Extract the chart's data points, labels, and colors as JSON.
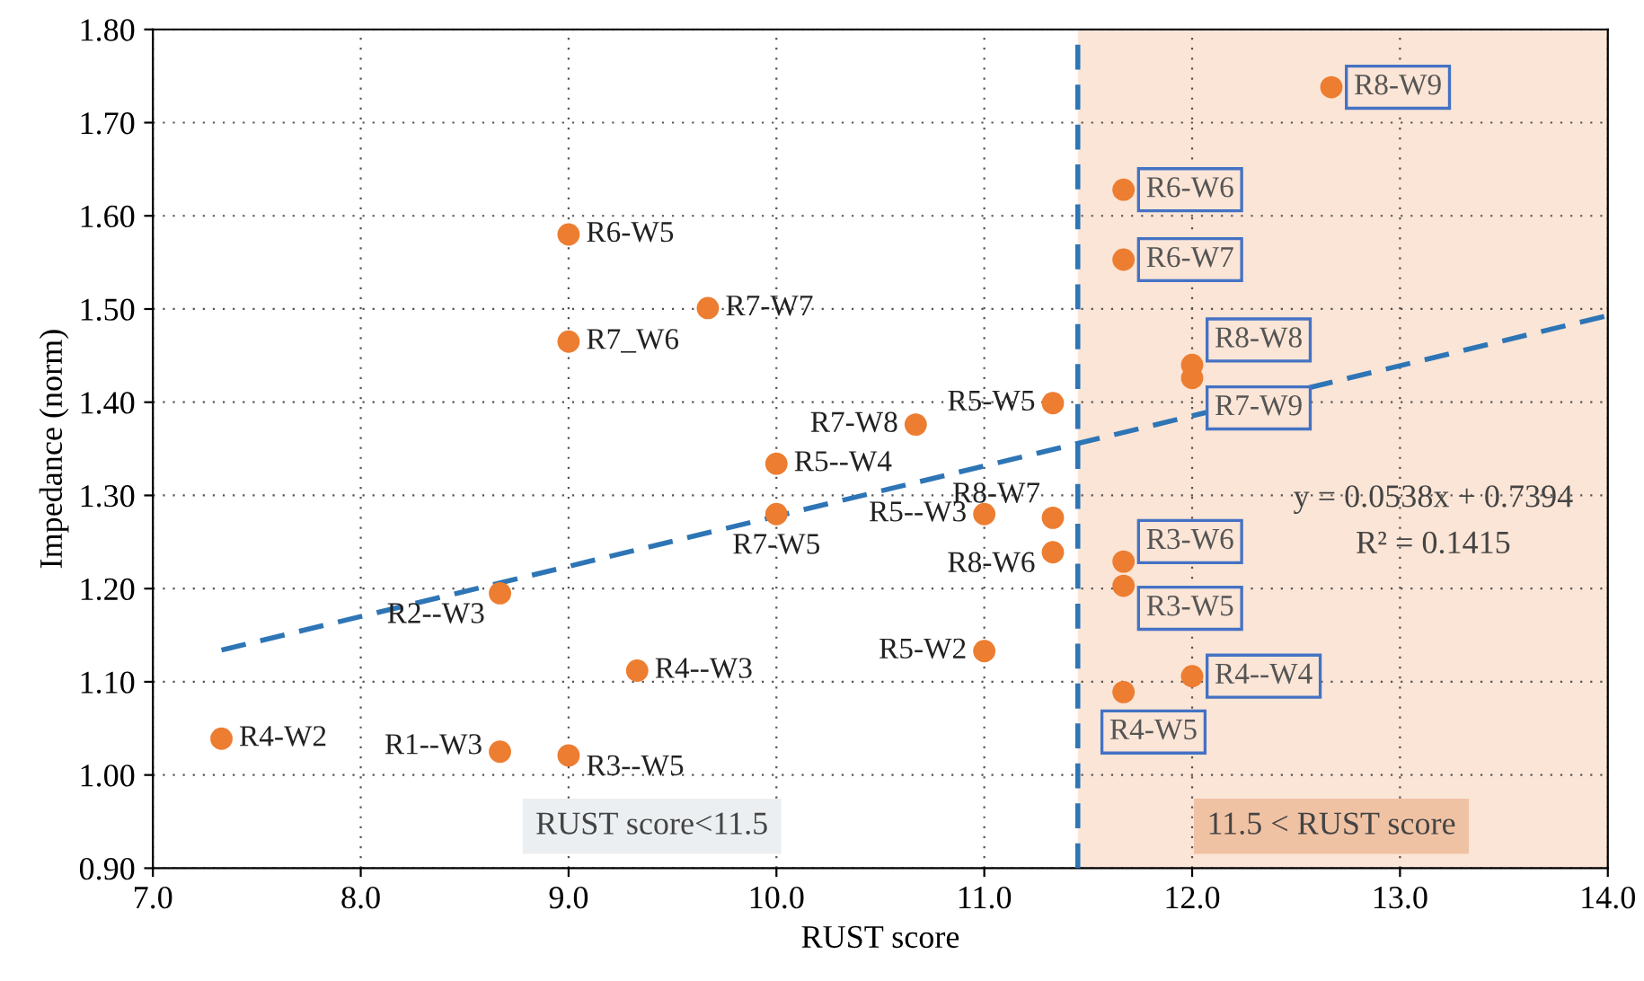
{
  "chart_data": {
    "type": "scatter",
    "xlabel": "RUST score",
    "ylabel": "Impedance (norm)",
    "xlim": [
      7.0,
      14.0
    ],
    "ylim": [
      0.9,
      1.8
    ],
    "xticks": [
      {
        "value": 7,
        "label": "7.0"
      },
      {
        "value": 8,
        "label": "8.0"
      },
      {
        "value": 9,
        "label": "9.0"
      },
      {
        "value": 10,
        "label": "10.0"
      },
      {
        "value": 11,
        "label": "11.0"
      },
      {
        "value": 12,
        "label": "12.0"
      },
      {
        "value": 13,
        "label": "13.0"
      },
      {
        "value": 14,
        "label": "14.0"
      }
    ],
    "yticks": [
      {
        "value": 0.9,
        "label": "0.90"
      },
      {
        "value": 1.0,
        "label": "1.00"
      },
      {
        "value": 1.1,
        "label": "1.10"
      },
      {
        "value": 1.2,
        "label": "1.20"
      },
      {
        "value": 1.3,
        "label": "1.30"
      },
      {
        "value": 1.4,
        "label": "1.40"
      },
      {
        "value": 1.5,
        "label": "1.50"
      },
      {
        "value": 1.6,
        "label": "1.60"
      },
      {
        "value": 1.7,
        "label": "1.70"
      },
      {
        "value": 1.8,
        "label": "1.80"
      }
    ],
    "grid": true,
    "series": [
      {
        "color": "#ed7d31",
        "marker": "circle",
        "x": [
          7.33,
          8.67,
          9.0,
          8.67,
          9.33,
          9.0,
          9.0,
          9.67,
          10.0,
          10.0,
          10.67,
          11.33,
          11.0,
          11.33,
          11.33,
          11.0,
          12.67,
          11.67,
          11.67,
          12.0,
          12.0,
          11.67,
          11.67,
          12.0,
          11.67
        ],
        "values": [
          1.039,
          1.025,
          1.021,
          1.195,
          1.112,
          1.58,
          1.465,
          1.501,
          1.334,
          1.28,
          1.376,
          1.399,
          1.28,
          1.276,
          1.239,
          1.133,
          1.738,
          1.628,
          1.553,
          1.44,
          1.426,
          1.229,
          1.203,
          1.106,
          1.089
        ]
      },
      {
        "type": "line",
        "color": "#2e75b6",
        "line_style": "dashed",
        "x": [
          7.33,
          14.0
        ],
        "values": [
          1.134,
          1.493
        ]
      }
    ],
    "ref_lines": [
      {
        "axis": "x",
        "value": 11.45,
        "color": "#2e75b6",
        "line_style": "dashed"
      }
    ],
    "bands": [
      {
        "axis": "x",
        "from": 11.45,
        "to": 14.0,
        "color": "#fbe5d6"
      }
    ],
    "annotations": [
      {
        "text": "R4-W2",
        "x": 7.33,
        "y": 1.039
      },
      {
        "text": "R1--W3",
        "x": 8.67,
        "y": 1.025
      },
      {
        "text": "R3--W5",
        "x": 9.0,
        "y": 1.021
      },
      {
        "text": "R2--W3",
        "x": 8.67,
        "y": 1.195
      },
      {
        "text": "R4--W3",
        "x": 9.33,
        "y": 1.112
      },
      {
        "text": "R6-W5",
        "x": 9.0,
        "y": 1.58
      },
      {
        "text": "R7_W6",
        "x": 9.0,
        "y": 1.465
      },
      {
        "text": "R7-W7",
        "x": 9.67,
        "y": 1.501
      },
      {
        "text": "R5--W4",
        "x": 10.0,
        "y": 1.334
      },
      {
        "text": "R7-W5",
        "x": 10.0,
        "y": 1.28
      },
      {
        "text": "R7-W8",
        "x": 10.67,
        "y": 1.376
      },
      {
        "text": "R5-W5",
        "x": 11.33,
        "y": 1.399
      },
      {
        "text": "R5--W3",
        "x": 11.0,
        "y": 1.28
      },
      {
        "text": "R8-W7",
        "x": 11.33,
        "y": 1.276
      },
      {
        "text": "R8-W6",
        "x": 11.33,
        "y": 1.239
      },
      {
        "text": "R5-W2",
        "x": 11.0,
        "y": 1.133
      },
      {
        "text": "R8-W9",
        "x": 12.67,
        "y": 1.738
      },
      {
        "text": "R6-W6",
        "x": 11.67,
        "y": 1.628
      },
      {
        "text": "R6-W7",
        "x": 11.67,
        "y": 1.553
      },
      {
        "text": "R8-W8",
        "x": 12.0,
        "y": 1.44
      },
      {
        "text": "R7-W9",
        "x": 12.0,
        "y": 1.426
      },
      {
        "text": "R3-W6",
        "x": 11.67,
        "y": 1.229
      },
      {
        "text": "R3-W5",
        "x": 11.67,
        "y": 1.203
      },
      {
        "text": "R4--W4",
        "x": 12.0,
        "y": 1.106
      },
      {
        "text": "R4-W5",
        "x": 11.67,
        "y": 1.089
      },
      "y = 0.0538x + 0.7394",
      "R² = 0.1415",
      "RUST score<11.5",
      "11.5 < RUST score"
    ]
  }
}
